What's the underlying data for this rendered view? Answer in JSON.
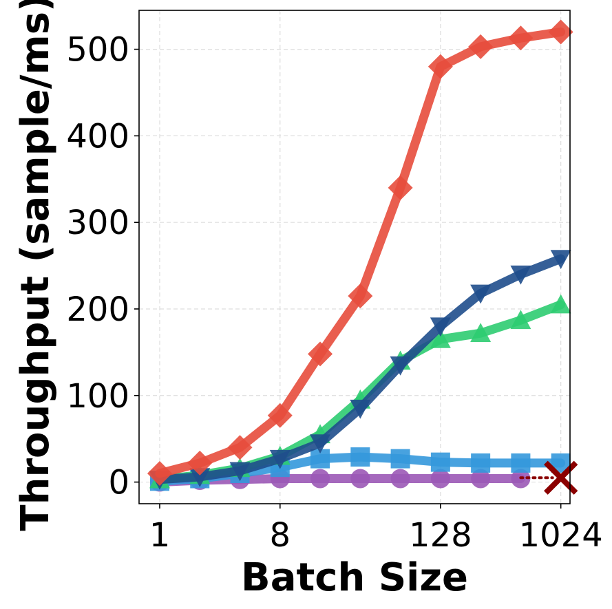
{
  "chart_data": {
    "type": "line",
    "title": "",
    "xlabel": "Batch Size",
    "ylabel": "Throughput (sample/ms)",
    "xscale": "log2",
    "xlim": [
      0.7,
      1200
    ],
    "ylim": [
      -25,
      545
    ],
    "grid": true,
    "xticks": [
      1,
      8,
      128,
      1024
    ],
    "xtick_labels": [
      "1",
      "8",
      "128",
      "1024"
    ],
    "yticks": [
      0,
      100,
      200,
      300,
      400,
      500
    ],
    "ytick_labels": [
      "0",
      "100",
      "200",
      "300",
      "400",
      "500"
    ],
    "x": [
      1,
      2,
      4,
      8,
      16,
      32,
      64,
      128,
      256,
      512,
      1024
    ],
    "series": [
      {
        "name": "red-diamond",
        "color": "#e74c3c",
        "marker": "diamond",
        "values": [
          10,
          22,
          40,
          77,
          148,
          215,
          340,
          480,
          503,
          513,
          520
        ]
      },
      {
        "name": "green-triangle-up",
        "color": "#2ecc71",
        "marker": "triangle-up",
        "values": [
          3,
          8,
          16,
          30,
          55,
          95,
          140,
          165,
          172,
          187,
          205
        ]
      },
      {
        "name": "navy-triangle-down",
        "color": "#1f4e8c",
        "marker": "triangle-down",
        "values": [
          3,
          6,
          13,
          27,
          45,
          85,
          135,
          180,
          218,
          240,
          258
        ]
      },
      {
        "name": "blue-square",
        "color": "#3498db",
        "marker": "square",
        "values": [
          1,
          4,
          10,
          17,
          27,
          29,
          27,
          23,
          22,
          22,
          22
        ]
      },
      {
        "name": "purple-circle",
        "color": "#9b59b6",
        "marker": "circle",
        "values": [
          0,
          2,
          3,
          4,
          4,
          4,
          4,
          4,
          4,
          4,
          null
        ]
      }
    ],
    "annotations": [
      {
        "type": "failure-marker",
        "symbol": "x",
        "x": 1024,
        "y": 5,
        "color": "#8b0000",
        "link_from_x": 512,
        "link_from_y": 5
      }
    ]
  }
}
